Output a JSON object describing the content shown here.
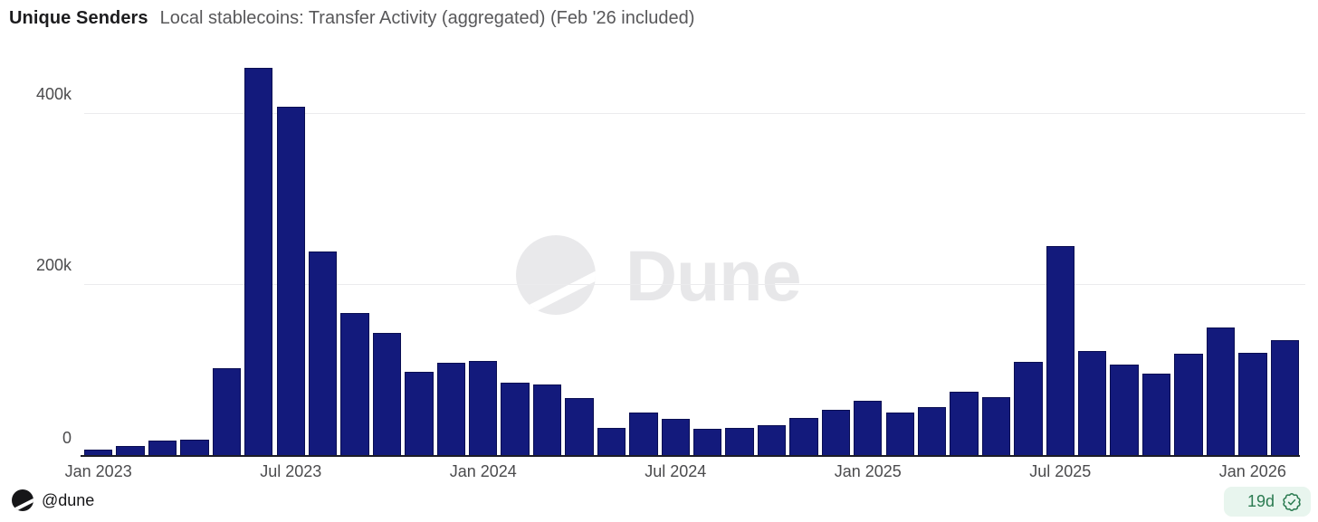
{
  "header": {
    "title": "Unique Senders",
    "subtitle": "Local stablecoins: Transfer Activity (aggregated) (Feb '26 included)"
  },
  "chart_data": {
    "type": "bar",
    "title": "Unique Senders — Local stablecoins: Transfer Activity (aggregated) (Feb '26 included)",
    "categories": [
      "Jan 2023",
      "Feb 2023",
      "Mar 2023",
      "Apr 2023",
      "May 2023",
      "Jun 2023",
      "Jul 2023",
      "Aug 2023",
      "Sep 2023",
      "Oct 2023",
      "Nov 2023",
      "Dec 2023",
      "Jan 2024",
      "Feb 2024",
      "Mar 2024",
      "Apr 2024",
      "May 2024",
      "Jun 2024",
      "Jul 2024",
      "Aug 2024",
      "Sep 2024",
      "Oct 2024",
      "Nov 2024",
      "Dec 2024",
      "Jan 2025",
      "Feb 2025",
      "Mar 2025",
      "Apr 2025",
      "May 2025",
      "Jun 2025",
      "Jul 2025",
      "Aug 2025",
      "Sep 2025",
      "Oct 2025",
      "Nov 2025",
      "Dec 2025",
      "Jan 2026",
      "Feb 2026"
    ],
    "values": [
      6000,
      11000,
      17000,
      18000,
      102000,
      454000,
      408000,
      239000,
      167000,
      143000,
      98000,
      108000,
      110000,
      85000,
      83000,
      67000,
      32000,
      50000,
      42000,
      31000,
      32000,
      35000,
      44000,
      53000,
      64000,
      50000,
      56000,
      74000,
      68000,
      109000,
      245000,
      122000,
      106000,
      95000,
      119000,
      150000,
      120000,
      135000
    ],
    "xlabel": "",
    "ylabel": "Unique Senders",
    "ylim": [
      0,
      465000
    ],
    "y_ticks": [
      {
        "label": "0",
        "value": 0
      },
      {
        "label": "200k",
        "value": 200000
      },
      {
        "label": "400k",
        "value": 400000
      }
    ],
    "x_tick_indices": [
      0,
      6,
      12,
      18,
      24,
      30,
      36
    ],
    "x_tick_labels": [
      "Jan 2023",
      "Jul 2023",
      "Jan 2024",
      "Jul 2024",
      "Jan 2025",
      "Jul 2025",
      "Jan 2026"
    ],
    "grid": "horizontal",
    "legend_position": "none",
    "bar_color": "#131a7c",
    "bar_border_color": "#0a0e52"
  },
  "watermark": {
    "text": "Dune"
  },
  "footer": {
    "handle": "@dune",
    "freshness": "19d"
  },
  "colors": {
    "accent_green": "#2b7b51",
    "badge_bg": "#e8f5ee",
    "gridline": "#ebebed",
    "axis_text": "#4b4b4d",
    "title_text": "#1c1c1e",
    "subtitle_text": "#58585a"
  }
}
